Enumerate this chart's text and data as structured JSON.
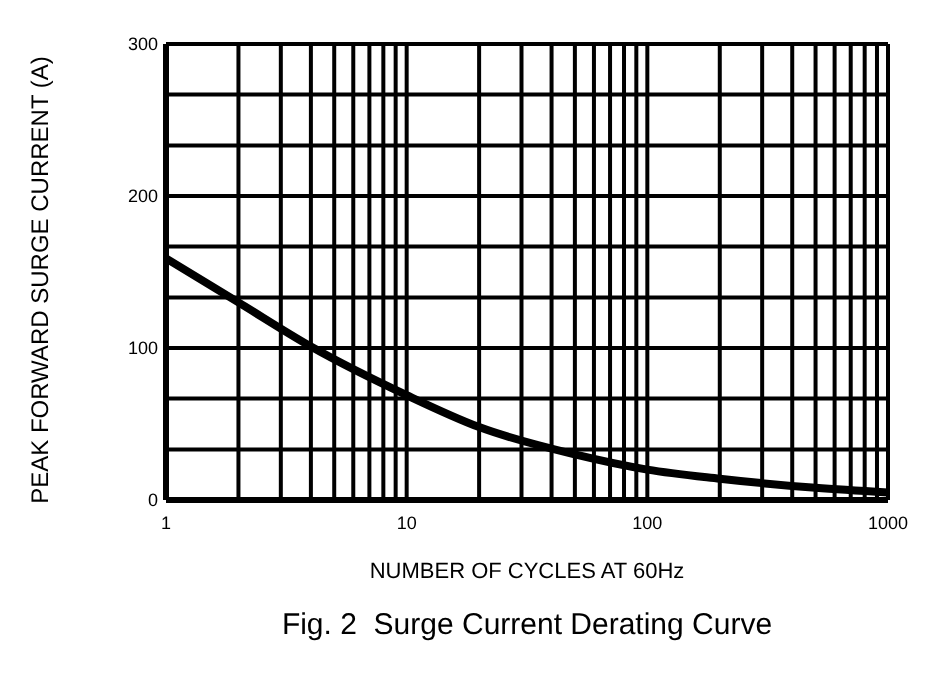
{
  "chart_data": {
    "type": "line",
    "title": "Fig. 2  Surge Current Derating Curve",
    "xlabel": "NUMBER OF CYCLES AT 60Hz",
    "ylabel": "PEAK FORWARD SURGE CURRENT (A)",
    "log": "x",
    "grid": true,
    "marker": "none",
    "line_style": "solid",
    "x": [
      1,
      2,
      4,
      10,
      20,
      50,
      100,
      200,
      500,
      1000
    ],
    "series": [
      {
        "color": "#000000",
        "values": [
          159,
          130,
          101,
          69,
          48,
          30,
          20,
          14,
          8,
          5
        ]
      }
    ],
    "xlim": [
      1,
      1000
    ],
    "xticks": [
      1,
      {
        "value": 2,
        "label": null
      },
      {
        "value": 3,
        "label": null
      },
      {
        "value": 4,
        "label": null
      },
      {
        "value": 5,
        "label": null
      },
      {
        "value": 6,
        "label": null
      },
      {
        "value": 7,
        "label": null
      },
      {
        "value": 8,
        "label": null
      },
      {
        "value": 9,
        "label": null
      },
      10,
      {
        "value": 20,
        "label": null
      },
      {
        "value": 30,
        "label": null
      },
      {
        "value": 40,
        "label": null
      },
      {
        "value": 50,
        "label": null
      },
      {
        "value": 60,
        "label": null
      },
      {
        "value": 70,
        "label": null
      },
      {
        "value": 80,
        "label": null
      },
      {
        "value": 90,
        "label": null
      },
      100,
      {
        "value": 200,
        "label": null
      },
      {
        "value": 300,
        "label": null
      },
      {
        "value": 400,
        "label": null
      },
      {
        "value": 500,
        "label": null
      },
      {
        "value": 600,
        "label": null
      },
      {
        "value": 700,
        "label": null
      },
      {
        "value": 800,
        "label": null
      },
      {
        "value": 900,
        "label": null
      },
      1000
    ],
    "ylim": [
      0,
      300
    ],
    "yticks": [
      0,
      {
        "value": 33.3,
        "label": null
      },
      {
        "value": 66.7,
        "label": null
      },
      100,
      {
        "value": 133.3,
        "label": null
      },
      {
        "value": 166.7,
        "label": null
      },
      200,
      {
        "value": 233.3,
        "label": null
      },
      {
        "value": 266.7,
        "label": null
      },
      300
    ]
  }
}
